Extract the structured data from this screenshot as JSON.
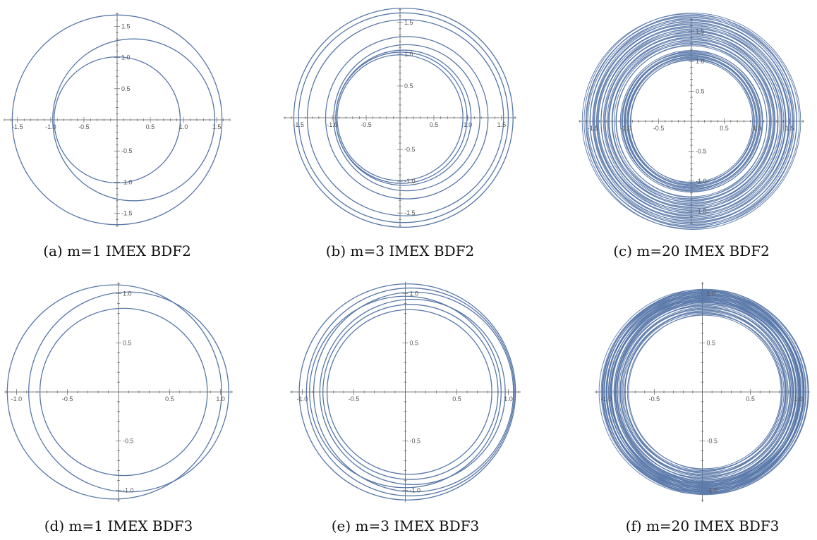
{
  "colors": {
    "curve": "#5877a8",
    "axis": "#555555"
  },
  "chart_data": [
    {
      "type": "line",
      "caption": "(a) m=1 IMEX BDF2",
      "xlim": [
        -1.7,
        1.7
      ],
      "ylim": [
        -1.72,
        1.72
      ],
      "xticks": [
        -1.5,
        -1.0,
        -0.5,
        0.5,
        1.0,
        1.5
      ],
      "xticklabels": [
        "-1.5",
        "-1.0",
        "-0.5",
        "0.5",
        "1.0",
        "1.5"
      ],
      "yticks": [
        -1.5,
        -1.0,
        -0.5,
        0.5,
        1.0,
        1.5
      ],
      "yticklabels": [
        "-1.5",
        "-1.0",
        "-0.5",
        "0.5",
        "1.0",
        "1.5"
      ],
      "circles": [
        {
          "cx": 0.0,
          "cy": 0.0,
          "r": 1.58
        },
        {
          "cx": 0.25,
          "cy": 0.0,
          "r": 1.22
        },
        {
          "cx": 0.0,
          "cy": 0.0,
          "r": 0.95
        }
      ]
    },
    {
      "type": "line",
      "caption": "(b) m=3 IMEX BDF2",
      "xlim": [
        -1.72,
        1.72
      ],
      "ylim": [
        -1.72,
        1.72
      ],
      "xticks": [
        -1.5,
        -1.0,
        -0.5,
        0.5,
        1.0,
        1.5
      ],
      "xticklabels": [
        "-1.5",
        "-1.0",
        "-0.5",
        "0.5",
        "1.0",
        "1.5"
      ],
      "yticks": [
        -1.5,
        -1.0,
        -0.5,
        0.5,
        1.0,
        1.5
      ],
      "yticklabels": [
        "-1.5",
        "-1.0",
        "-0.5",
        "0.5",
        "1.0",
        "1.5"
      ],
      "circles": [
        {
          "cx": 0.05,
          "cy": 0.0,
          "r": 1.62
        },
        {
          "cx": 0.05,
          "cy": 0.0,
          "r": 1.55
        },
        {
          "cx": 0.08,
          "cy": 0.0,
          "r": 1.45
        },
        {
          "cx": 0.1,
          "cy": 0.0,
          "r": 1.2
        },
        {
          "cx": 0.1,
          "cy": 0.0,
          "r": 1.08
        },
        {
          "cx": 0.05,
          "cy": 0.0,
          "r": 1.0
        },
        {
          "cx": 0.02,
          "cy": 0.0,
          "r": 0.97
        },
        {
          "cx": 0.0,
          "cy": 0.0,
          "r": 0.93
        }
      ]
    },
    {
      "type": "line",
      "caption": "(c) m=20 IMEX BDF2",
      "xlim": [
        -1.72,
        1.72
      ],
      "ylim": [
        -1.72,
        1.72
      ],
      "xticks": [
        -1.5,
        -1.0,
        -0.5,
        0.5,
        1.0,
        1.5
      ],
      "xticklabels": [
        "-1.5",
        "-1.0",
        "-0.5",
        "0.5",
        "1.0",
        "1.5"
      ],
      "yticks": [
        -1.5,
        -1.0,
        -0.5,
        0.5,
        1.0,
        1.5
      ],
      "yticklabels": [
        "-1.5",
        "-1.0",
        "-0.5",
        "0.5",
        "1.0",
        "1.5"
      ],
      "ring": {
        "inner_r": [
          0.93,
          1.08
        ],
        "outer_r": [
          1.15,
          1.65
        ],
        "cx": 0.0,
        "cy": 0.0
      }
    },
    {
      "type": "line",
      "caption": "(d) m=1 IMEX BDF3",
      "xlim": [
        -1.12,
        1.12
      ],
      "ylim": [
        -1.12,
        1.12
      ],
      "xticks": [
        -1.0,
        -0.5,
        0.5,
        1.0
      ],
      "xticklabels": [
        "-1.0",
        "-0.5",
        "0.5",
        "1.0"
      ],
      "yticks": [
        -1.0,
        -0.5,
        0.5,
        1.0
      ],
      "yticklabels": [
        "-1.0",
        "-0.5",
        "0.5",
        "1.0"
      ],
      "circles": [
        {
          "cx": -0.04,
          "cy": 0.0,
          "r": 1.05
        },
        {
          "cx": 0.1,
          "cy": 0.0,
          "r": 0.98
        },
        {
          "cx": 0.05,
          "cy": 0.0,
          "r": 0.82
        }
      ]
    },
    {
      "type": "line",
      "caption": "(e) m=3 IMEX BDF3",
      "xlim": [
        -1.12,
        1.12
      ],
      "ylim": [
        -1.12,
        1.12
      ],
      "xticks": [
        -1.0,
        -0.5,
        0.5,
        1.0
      ],
      "xticklabels": [
        "-1.0",
        "-0.5",
        "0.5",
        "1.0"
      ],
      "yticks": [
        -1.0,
        -0.5,
        0.5,
        1.0
      ],
      "yticklabels": [
        "-1.0",
        "-0.5",
        "0.5",
        "1.0"
      ],
      "circles": [
        {
          "cx": 0.02,
          "cy": 0.0,
          "r": 1.05
        },
        {
          "cx": 0.05,
          "cy": 0.0,
          "r": 1.01
        },
        {
          "cx": 0.08,
          "cy": 0.0,
          "r": 0.97
        },
        {
          "cx": 0.0,
          "cy": 0.0,
          "r": 0.93
        },
        {
          "cx": 0.07,
          "cy": 0.0,
          "r": 0.9
        },
        {
          "cx": 0.05,
          "cy": 0.0,
          "r": 0.85
        },
        {
          "cx": 0.04,
          "cy": 0.0,
          "r": 0.8
        }
      ]
    },
    {
      "type": "line",
      "caption": "(f) m=20 IMEX BDF3",
      "xlim": [
        -1.12,
        1.12
      ],
      "ylim": [
        -1.12,
        1.12
      ],
      "xticks": [
        -1.0,
        -0.5,
        0.5,
        1.0
      ],
      "xticklabels": [
        "-1.0",
        "-0.5",
        "0.5",
        "1.0"
      ],
      "yticks": [
        -1.0,
        -0.5,
        0.5,
        1.0
      ],
      "yticklabels": [
        "-1.0",
        "-0.5",
        "0.5",
        "1.0"
      ],
      "ring": {
        "inner_r": [
          0.8,
          0.92
        ],
        "outer_r": [
          0.93,
          1.07
        ],
        "cx": 0.02,
        "cy": 0.0
      }
    }
  ]
}
